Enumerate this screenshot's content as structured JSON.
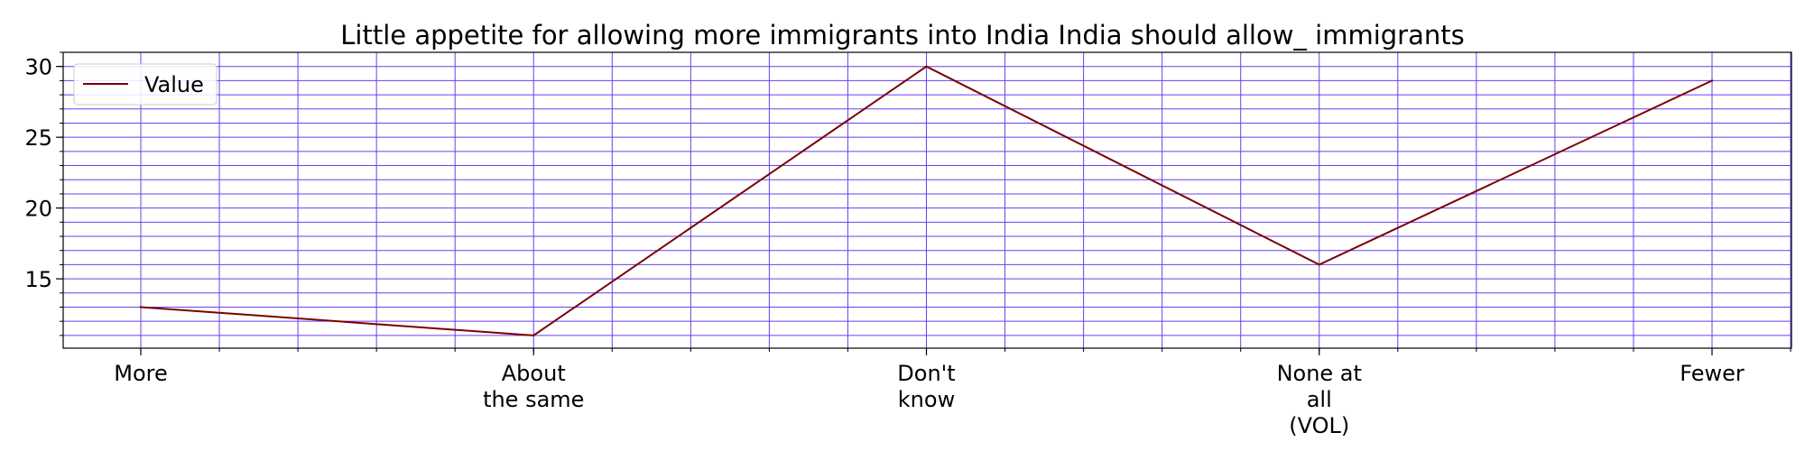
{
  "chart_data": {
    "type": "line",
    "title": "Little appetite for allowing more immigrants into India India should allow_ immigrants",
    "categories": [
      [
        "More"
      ],
      [
        "About",
        "the same"
      ],
      [
        "Don't",
        "know"
      ],
      [
        "None at",
        "all",
        "(VOL)"
      ],
      [
        "Fewer"
      ]
    ],
    "series": [
      {
        "name": "Value",
        "values": [
          13,
          11,
          30,
          16,
          29
        ],
        "color": "#7b0000"
      }
    ],
    "xlabel": "",
    "ylabel": "",
    "ylim": [
      10.1,
      31.0
    ],
    "yticks": [
      15,
      20,
      25,
      30
    ],
    "yminor_step": 1,
    "grid": true,
    "grid_color": "#6a3ff0",
    "legend_position": "upper-left"
  }
}
